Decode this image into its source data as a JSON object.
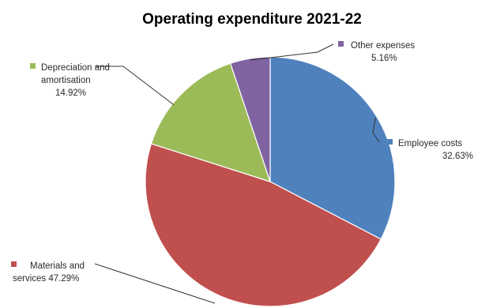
{
  "chart_data": {
    "type": "pie",
    "title": "Operating expenditure 2021-22",
    "start_angle_deg": 0,
    "direction": "clockwise",
    "slices": [
      {
        "name": "Employee costs",
        "label_lines": [
          "Employee costs",
          "32.63%"
        ],
        "value": 32.63,
        "color": "#4F81BD"
      },
      {
        "name": "Materials and services",
        "label_lines": [
          "Materials and",
          "services 47.29%"
        ],
        "value": 47.29,
        "color": "#C0504D"
      },
      {
        "name": "Depreciation and amortisation",
        "label_lines": [
          "Depreciation and",
          "amortisation",
          "14.92%"
        ],
        "value": 14.92,
        "color": "#9BBB59"
      },
      {
        "name": "Other expenses",
        "label_lines": [
          "Other expenses",
          "5.16%"
        ],
        "value": 5.16,
        "color": "#8064A2"
      }
    ],
    "legend": "none",
    "data_labels": "outside with leader lines"
  }
}
